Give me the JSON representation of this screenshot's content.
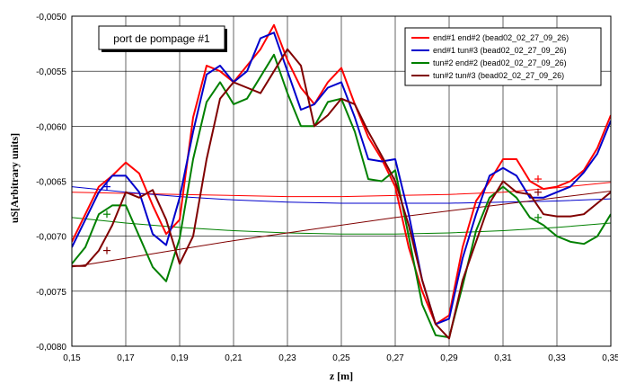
{
  "chart_data": {
    "type": "line",
    "xlabel": "z [m]",
    "ylabel": "uS[Arbitrary units]",
    "xlim": [
      0.15,
      0.35
    ],
    "ylim": [
      -0.008,
      -0.005
    ],
    "x_ticks": [
      "0,15",
      "0,17",
      "0,19",
      "0,21",
      "0,23",
      "0,25",
      "0,27",
      "0,29",
      "0,31",
      "0,33",
      "0,35"
    ],
    "x_tick_values": [
      0.15,
      0.17,
      0.19,
      0.21,
      0.23,
      0.25,
      0.27,
      0.29,
      0.31,
      0.33,
      0.35
    ],
    "y_ticks": [
      "-0,0050",
      "-0,0055",
      "-0,0060",
      "-0,0065",
      "-0,0070",
      "-0,0075",
      "-0,0080"
    ],
    "y_tick_values": [
      -0.005,
      -0.0055,
      -0.006,
      -0.0065,
      -0.007,
      -0.0075,
      -0.008
    ],
    "grid": true,
    "annotation": "port de pompage #1",
    "legend_position": "top-right",
    "series": [
      {
        "name": "end#1 end#2 (bead02_02_27_09_26)",
        "color": "#ff0000",
        "x": [
          0.15,
          0.155,
          0.16,
          0.165,
          0.17,
          0.175,
          0.18,
          0.185,
          0.19,
          0.195,
          0.2,
          0.205,
          0.21,
          0.215,
          0.22,
          0.225,
          0.23,
          0.235,
          0.24,
          0.245,
          0.25,
          0.255,
          0.26,
          0.265,
          0.27,
          0.275,
          0.28,
          0.285,
          0.29,
          0.295,
          0.3,
          0.305,
          0.31,
          0.315,
          0.32,
          0.325,
          0.33,
          0.335,
          0.34,
          0.345,
          0.35
        ],
        "y": [
          -0.00705,
          -0.0068,
          -0.00655,
          -0.00645,
          -0.00633,
          -0.00643,
          -0.00672,
          -0.00698,
          -0.00685,
          -0.00592,
          -0.00545,
          -0.0055,
          -0.0056,
          -0.00545,
          -0.0053,
          -0.00508,
          -0.0054,
          -0.00565,
          -0.0058,
          -0.0056,
          -0.00547,
          -0.0058,
          -0.0061,
          -0.0063,
          -0.00655,
          -0.0071,
          -0.0075,
          -0.0078,
          -0.00772,
          -0.0071,
          -0.00668,
          -0.0065,
          -0.0063,
          -0.0063,
          -0.0065,
          -0.00657,
          -0.00655,
          -0.0065,
          -0.0064,
          -0.0062,
          -0.0059
        ]
      },
      {
        "name": "end#1 tun#3 (bead02_02_27_09_26)",
        "color": "#0000cc",
        "x": [
          0.15,
          0.155,
          0.16,
          0.165,
          0.17,
          0.175,
          0.18,
          0.185,
          0.19,
          0.195,
          0.2,
          0.205,
          0.21,
          0.215,
          0.22,
          0.225,
          0.23,
          0.235,
          0.24,
          0.245,
          0.25,
          0.255,
          0.26,
          0.265,
          0.27,
          0.275,
          0.28,
          0.285,
          0.29,
          0.295,
          0.3,
          0.305,
          0.31,
          0.315,
          0.32,
          0.325,
          0.33,
          0.335,
          0.34,
          0.345,
          0.35
        ],
        "y": [
          -0.0071,
          -0.00685,
          -0.0066,
          -0.00645,
          -0.00645,
          -0.0066,
          -0.00698,
          -0.00708,
          -0.00665,
          -0.00605,
          -0.00553,
          -0.00545,
          -0.0056,
          -0.0055,
          -0.0052,
          -0.00515,
          -0.0055,
          -0.00585,
          -0.0058,
          -0.00565,
          -0.0056,
          -0.00592,
          -0.0063,
          -0.00632,
          -0.0063,
          -0.0068,
          -0.0074,
          -0.0078,
          -0.00775,
          -0.0072,
          -0.0068,
          -0.00645,
          -0.00638,
          -0.00645,
          -0.00665,
          -0.00665,
          -0.0066,
          -0.00655,
          -0.00642,
          -0.00625,
          -0.00595
        ]
      },
      {
        "name": "tun#2 end#2 (bead02_02_27_09_26)",
        "color": "#008000",
        "x": [
          0.15,
          0.155,
          0.16,
          0.165,
          0.17,
          0.175,
          0.18,
          0.185,
          0.19,
          0.195,
          0.2,
          0.205,
          0.21,
          0.215,
          0.22,
          0.225,
          0.23,
          0.235,
          0.24,
          0.245,
          0.25,
          0.255,
          0.26,
          0.265,
          0.27,
          0.275,
          0.28,
          0.285,
          0.29,
          0.295,
          0.3,
          0.305,
          0.31,
          0.315,
          0.32,
          0.325,
          0.33,
          0.335,
          0.34,
          0.345,
          0.35
        ],
        "y": [
          -0.00725,
          -0.0071,
          -0.0068,
          -0.00672,
          -0.00672,
          -0.007,
          -0.00728,
          -0.00741,
          -0.00702,
          -0.0063,
          -0.00578,
          -0.0056,
          -0.0058,
          -0.00575,
          -0.00555,
          -0.00535,
          -0.0057,
          -0.006,
          -0.006,
          -0.00578,
          -0.00575,
          -0.00605,
          -0.00648,
          -0.0065,
          -0.0064,
          -0.007,
          -0.00762,
          -0.0079,
          -0.00792,
          -0.00745,
          -0.00695,
          -0.00665,
          -0.00655,
          -0.00665,
          -0.00683,
          -0.0069,
          -0.007,
          -0.00705,
          -0.00707,
          -0.007,
          -0.0068
        ]
      },
      {
        "name": "tun#2 tun#3 (bead02_02_27_09_26)",
        "color": "#800000",
        "x": [
          0.15,
          0.155,
          0.16,
          0.165,
          0.17,
          0.175,
          0.18,
          0.185,
          0.19,
          0.195,
          0.2,
          0.205,
          0.21,
          0.215,
          0.22,
          0.225,
          0.23,
          0.235,
          0.24,
          0.245,
          0.25,
          0.255,
          0.26,
          0.265,
          0.27,
          0.275,
          0.28,
          0.285,
          0.29,
          0.295,
          0.3,
          0.305,
          0.31,
          0.315,
          0.32,
          0.325,
          0.33,
          0.335,
          0.34,
          0.345,
          0.35
        ],
        "y": [
          -0.00727,
          -0.00727,
          -0.00713,
          -0.0069,
          -0.0066,
          -0.00665,
          -0.00658,
          -0.00685,
          -0.00725,
          -0.007,
          -0.0063,
          -0.00575,
          -0.0056,
          -0.00565,
          -0.0057,
          -0.0055,
          -0.0053,
          -0.00545,
          -0.006,
          -0.0059,
          -0.00575,
          -0.0058,
          -0.00605,
          -0.00627,
          -0.0065,
          -0.0069,
          -0.0074,
          -0.0078,
          -0.00793,
          -0.0074,
          -0.00705,
          -0.0067,
          -0.0065,
          -0.0066,
          -0.00662,
          -0.0068,
          -0.00682,
          -0.00682,
          -0.0068,
          -0.0067,
          -0.0066
        ]
      },
      {
        "name": "",
        "color": "#ff0000",
        "x": [
          0.15,
          0.17,
          0.19,
          0.21,
          0.23,
          0.25,
          0.27,
          0.29,
          0.31,
          0.33,
          0.35
        ],
        "y": [
          -0.0066,
          -0.00661,
          -0.00662,
          -0.00663,
          -0.00664,
          -0.00664,
          -0.00663,
          -0.00662,
          -0.0066,
          -0.00656,
          -0.00651
        ]
      },
      {
        "name": "",
        "color": "#0000cc",
        "x": [
          0.15,
          0.17,
          0.19,
          0.21,
          0.23,
          0.25,
          0.27,
          0.29,
          0.31,
          0.33,
          0.35
        ],
        "y": [
          -0.00655,
          -0.0066,
          -0.00664,
          -0.00667,
          -0.00669,
          -0.0067,
          -0.0067,
          -0.0067,
          -0.00669,
          -0.00668,
          -0.00666
        ]
      },
      {
        "name": "",
        "color": "#008000",
        "x": [
          0.15,
          0.17,
          0.19,
          0.21,
          0.23,
          0.25,
          0.27,
          0.29,
          0.31,
          0.33,
          0.35
        ],
        "y": [
          -0.00683,
          -0.00688,
          -0.00692,
          -0.00695,
          -0.00697,
          -0.00698,
          -0.00698,
          -0.00697,
          -0.00695,
          -0.00692,
          -0.00688
        ]
      },
      {
        "name": "",
        "color": "#800000",
        "x": [
          0.15,
          0.17,
          0.19,
          0.21,
          0.23,
          0.25,
          0.27,
          0.29,
          0.31,
          0.33,
          0.35
        ],
        "y": [
          -0.00728,
          -0.0072,
          -0.00712,
          -0.00704,
          -0.00697,
          -0.0069,
          -0.00683,
          -0.00677,
          -0.00671,
          -0.00665,
          -0.00659
        ]
      }
    ],
    "markers": [
      {
        "x": 0.163,
        "y": -0.00655,
        "color": "#0000cc"
      },
      {
        "x": 0.163,
        "y": -0.0068,
        "color": "#008000"
      },
      {
        "x": 0.163,
        "y": -0.00713,
        "color": "#800000"
      },
      {
        "x": 0.323,
        "y": -0.00648,
        "color": "#ff0000"
      },
      {
        "x": 0.323,
        "y": -0.0066,
        "color": "#800000"
      },
      {
        "x": 0.323,
        "y": -0.00683,
        "color": "#008000"
      }
    ]
  }
}
